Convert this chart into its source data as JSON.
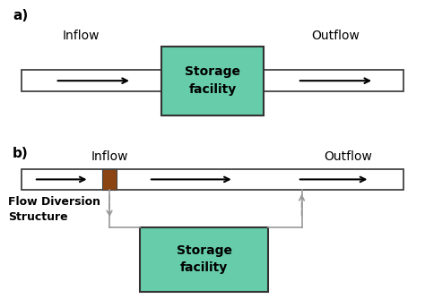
{
  "bg_color": "#ffffff",
  "teal_color": "#66ccaa",
  "brown_color": "#8B4513",
  "gray_color": "#999999",
  "pipe_color": "#ffffff",
  "pipe_edge": "#333333",
  "label_a": "a)",
  "label_b": "b)",
  "inflow_label": "Inflow",
  "outflow_label": "Outflow",
  "storage_text": "Storage\nfacility",
  "flow_div_line1": "Flow Diversion",
  "flow_div_line2": "Structure"
}
